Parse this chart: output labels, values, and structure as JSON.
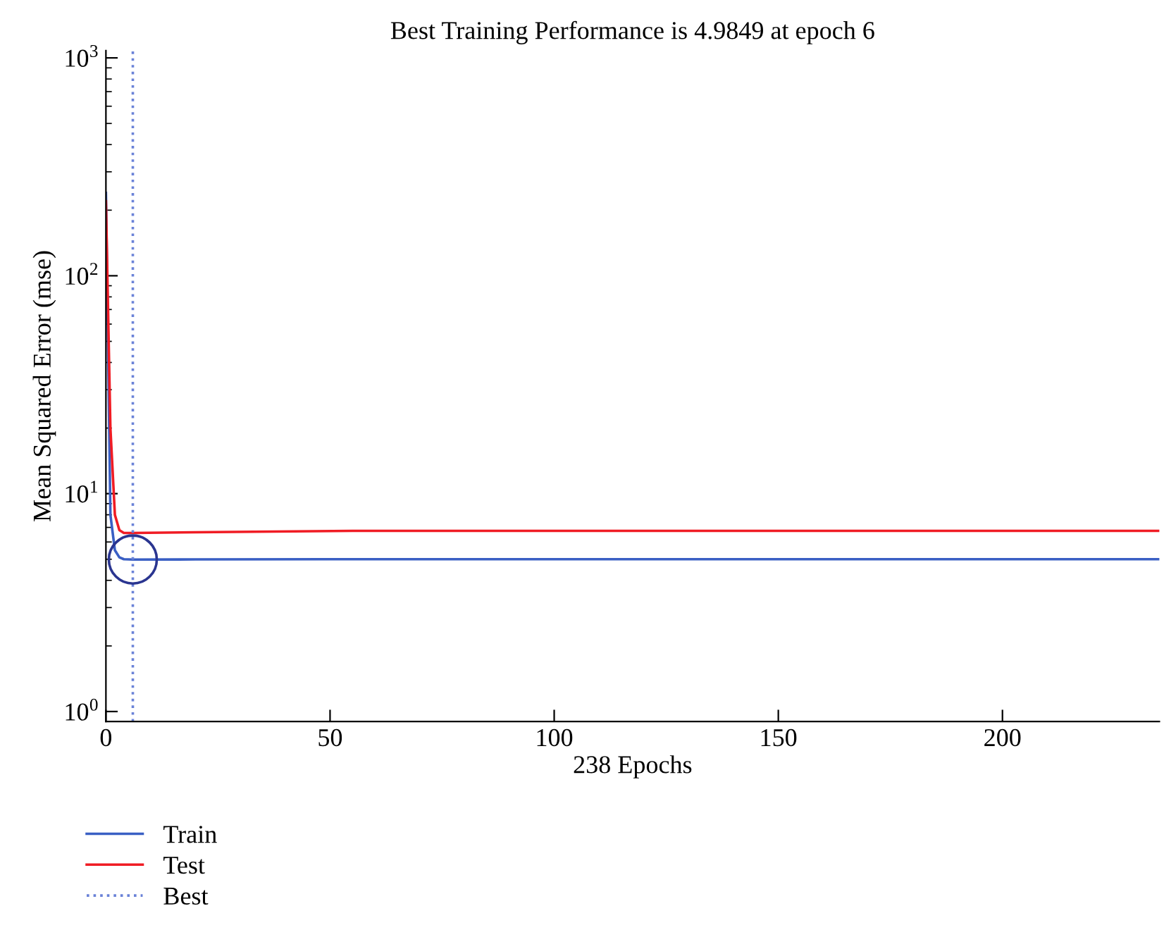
{
  "chart_data": {
    "type": "line",
    "title": "Best Training Performance is 4.9849 at epoch 6",
    "xlabel": "238 Epochs",
    "ylabel": "Mean Squared Error (mse)",
    "log": "y",
    "grid": false,
    "legend": "bottom left",
    "xlim": [
      0,
      235
    ],
    "xticks": [
      0,
      50,
      100,
      150,
      200
    ],
    "ylim": [
      0.9,
      1080
    ],
    "yticks": [
      {
        "value": 1,
        "label": "10$^{0}$"
      },
      {
        "value": 10,
        "label": "10$^{1}$"
      },
      {
        "value": 100,
        "label": "10$^{2}$"
      },
      {
        "value": 1000,
        "label": "10$^{3}$"
      }
    ],
    "series": [
      {
        "name": "Train",
        "color": "#3a5fc4",
        "x": [
          0,
          1,
          2,
          3,
          4,
          6,
          20,
          50,
          100,
          150,
          200,
          235
        ],
        "values": [
          240,
          8,
          5.5,
          5.1,
          5.0,
          4.9849,
          4.99,
          5.0,
          5.0,
          5.0,
          5.0,
          5.0
        ]
      },
      {
        "name": "Test",
        "color": "#f01c24",
        "x": [
          0,
          1,
          2,
          3,
          4,
          6,
          20,
          55,
          100,
          150,
          200,
          235
        ],
        "values": [
          220,
          20,
          8,
          6.8,
          6.6,
          6.6,
          6.65,
          6.75,
          6.75,
          6.75,
          6.75,
          6.75
        ]
      },
      {
        "type": "scatter",
        "color": "#2a3590",
        "marker": "circle",
        "x": [
          6
        ],
        "values": [
          4.9849
        ]
      }
    ],
    "ref_lines": [
      {
        "axis": "x",
        "value": 6,
        "label": "Best",
        "color": "#6a82d8",
        "line_style": "dotted"
      }
    ]
  }
}
